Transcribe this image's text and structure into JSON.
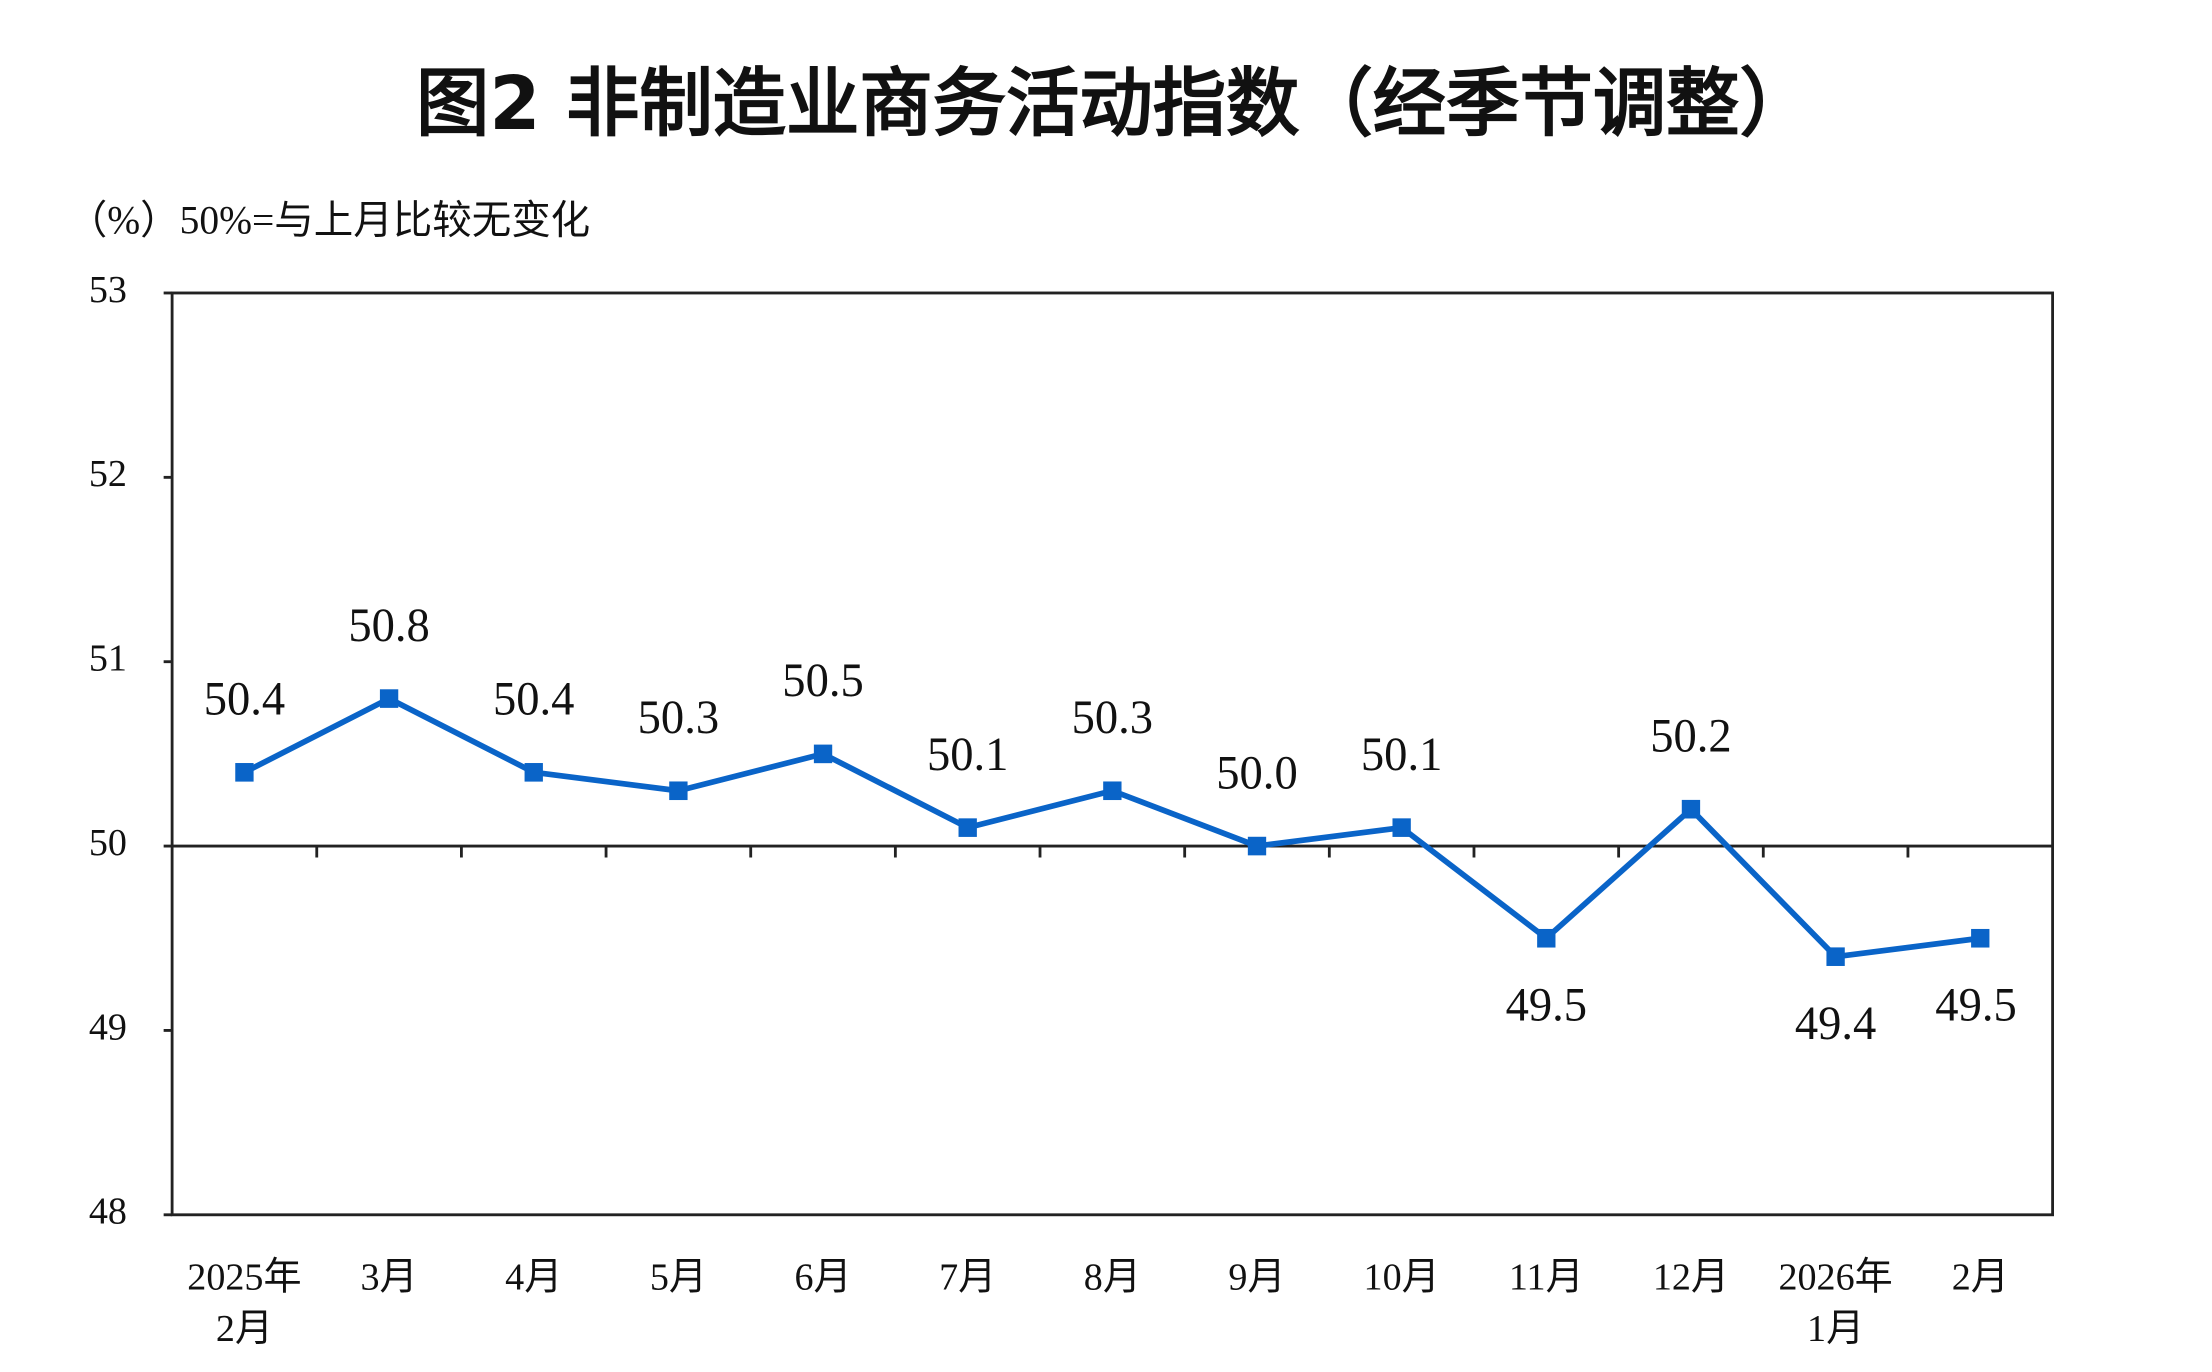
{
  "chart_data": {
    "type": "line",
    "title": "图2  非制造业商务活动指数（经季节调整）",
    "y_axis_label": "（%）50%=与上月比较无变化",
    "categories": [
      "2025年\n2月",
      "3月",
      "4月",
      "5月",
      "6月",
      "7月",
      "8月",
      "9月",
      "10月",
      "11月",
      "12月",
      "2026年\n1月",
      "2月"
    ],
    "values": [
      50.4,
      50.8,
      50.4,
      50.3,
      50.5,
      50.1,
      50.3,
      50.0,
      50.1,
      49.5,
      50.2,
      49.4,
      49.5
    ],
    "value_labels": [
      "50.4",
      "50.8",
      "50.4",
      "50.3",
      "50.5",
      "50.1",
      "50.3",
      "50.0",
      "50.1",
      "49.5",
      "50.2",
      "49.4",
      "49.5"
    ],
    "color": "#0a64c8",
    "ylim": [
      48,
      53
    ],
    "yticks": [
      48,
      49,
      50,
      51,
      52,
      53
    ],
    "reference_line": 50,
    "grid": false
  }
}
